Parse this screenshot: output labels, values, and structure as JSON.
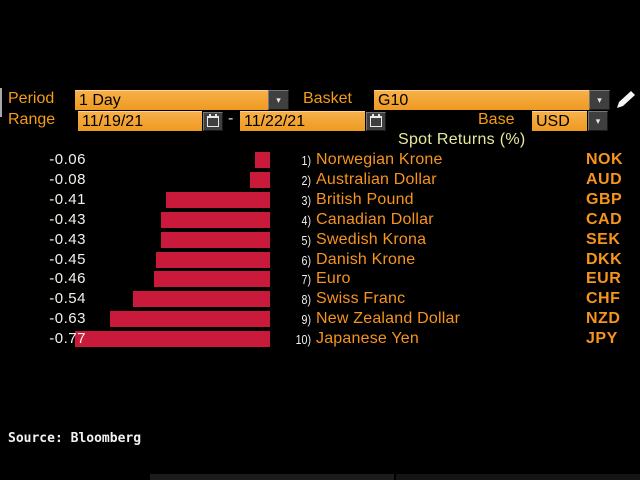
{
  "controls": {
    "period": {
      "label": "Period",
      "value": "1 Day"
    },
    "basket": {
      "label": "Basket",
      "value": "G10"
    },
    "range": {
      "label": "Range",
      "start": "11/19/21",
      "separator": "-",
      "end": "11/22/21"
    },
    "base": {
      "label": "Base",
      "value": "USD"
    },
    "dropdown_glyph": "▾"
  },
  "chart_data": {
    "type": "bar",
    "orientation": "horizontal",
    "title": "Spot Returns (%)",
    "ranks": [
      "1)",
      "2)",
      "3)",
      "4)",
      "5)",
      "6)",
      "7)",
      "8)",
      "9)",
      "10)"
    ],
    "categories": [
      "Norwegian Krone",
      "Australian Dollar",
      "British Pound",
      "Canadian Dollar",
      "Swedish Krona",
      "Danish Krone",
      "Euro",
      "Swiss Franc",
      "New Zealand Dollar",
      "Japanese Yen"
    ],
    "codes": [
      "NOK",
      "AUD",
      "GBP",
      "CAD",
      "SEK",
      "DKK",
      "EUR",
      "CHF",
      "NZD",
      "JPY"
    ],
    "values": [
      -0.06,
      -0.08,
      -0.41,
      -0.43,
      -0.43,
      -0.45,
      -0.46,
      -0.54,
      -0.63,
      -0.77
    ],
    "value_labels": [
      "-0.06",
      "-0.08",
      "-0.41",
      "-0.43",
      "-0.43",
      "-0.45",
      "-0.46",
      "-0.54",
      "-0.63",
      "-0.77"
    ],
    "xlim": [
      -0.8,
      0
    ],
    "grid": false,
    "legend": false,
    "bar_color": "#c91a3c",
    "value_text_color": "#f2f1ea",
    "label_color": "#f7941e",
    "title_color": "#e9e99b"
  },
  "footer": {
    "source_note": "Source: Bloomberg"
  },
  "colors": {
    "background": "#000000",
    "accent_orange": "#f59d14",
    "field_amber": "#f2a436",
    "bar_red": "#c91a3c"
  }
}
